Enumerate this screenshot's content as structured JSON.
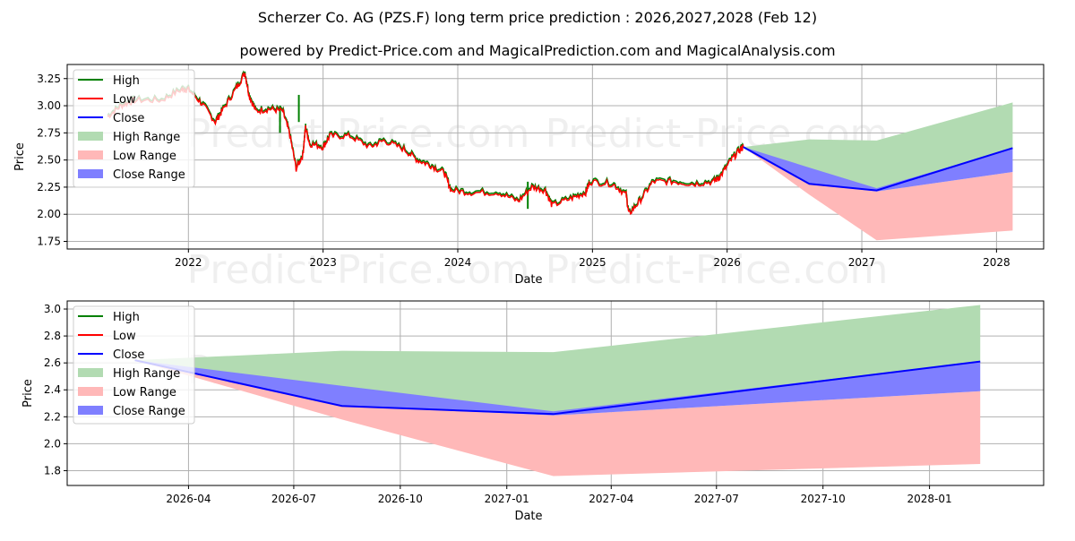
{
  "title": "Scherzer Co. AG (PZS.F) long term price prediction : 2026,2027,2028 (Feb 12)",
  "subtitle": "powered by Predict-Price.com and MagicalPrediction.com and MagicalAnalysis.com",
  "watermark": "Predict-Price.com",
  "colors": {
    "high": "#008000",
    "low": "#ff0000",
    "close": "#0000ff",
    "high_range": "#b2dbb2",
    "low_range": "#ffb8b8",
    "close_range": "#7f7fff"
  },
  "legend": [
    "High",
    "Low",
    "Close",
    "High Range",
    "Low Range",
    "Close Range"
  ],
  "chart_data": [
    {
      "type": "line",
      "name": "long-term",
      "xlabel": "Date",
      "ylabel": "Price",
      "xlim": [
        2021.1,
        2028.35
      ],
      "ylim": [
        1.68,
        3.38
      ],
      "grid": true,
      "legend_placement": "top-left",
      "x_ticks": [
        {
          "v": 2022,
          "label": "2022"
        },
        {
          "v": 2023,
          "label": "2023"
        },
        {
          "v": 2024,
          "label": "2024"
        },
        {
          "v": 2025,
          "label": "2025"
        },
        {
          "v": 2026,
          "label": "2026"
        },
        {
          "v": 2027,
          "label": "2027"
        },
        {
          "v": 2028,
          "label": "2028"
        }
      ],
      "y_ticks": [
        {
          "v": 1.75,
          "label": "1.75"
        },
        {
          "v": 2.0,
          "label": "2.00"
        },
        {
          "v": 2.25,
          "label": "2.25"
        },
        {
          "v": 2.5,
          "label": "2.50"
        },
        {
          "v": 2.75,
          "label": "2.75"
        },
        {
          "v": 3.0,
          "label": "3.00"
        },
        {
          "v": 3.25,
          "label": "3.25"
        }
      ],
      "history": {
        "x": [
          2021.4,
          2021.5,
          2021.6,
          2021.8,
          2021.95,
          2022.0,
          2022.1,
          2022.2,
          2022.25,
          2022.35,
          2022.42,
          2022.45,
          2022.5,
          2022.6,
          2022.7,
          2022.75,
          2022.8,
          2022.85,
          2022.87,
          2022.9,
          2023.0,
          2023.05,
          2023.2,
          2023.35,
          2023.45,
          2023.6,
          2023.7,
          2023.8,
          2023.9,
          2023.95,
          2024.1,
          2024.3,
          2024.45,
          2024.55,
          2024.65,
          2024.7,
          2024.85,
          2024.95,
          2024.98,
          2025.15,
          2025.25,
          2025.27,
          2025.35,
          2025.45,
          2025.6,
          2025.75,
          2025.9,
          2025.95,
          2026.03,
          2026.1,
          2026.12
        ],
        "low": [
          2.9,
          3.0,
          3.05,
          3.05,
          3.15,
          3.15,
          3.02,
          2.85,
          2.95,
          3.15,
          3.3,
          3.1,
          2.95,
          2.97,
          2.95,
          2.75,
          2.42,
          2.55,
          2.8,
          2.65,
          2.62,
          2.72,
          2.72,
          2.62,
          2.68,
          2.6,
          2.5,
          2.45,
          2.38,
          2.22,
          2.2,
          2.2,
          2.12,
          2.25,
          2.22,
          2.08,
          2.15,
          2.2,
          2.3,
          2.28,
          2.18,
          2.0,
          2.12,
          2.3,
          2.3,
          2.28,
          2.3,
          2.35,
          2.5,
          2.6,
          2.62
        ],
        "high_spikes": [
          {
            "x": 2022.82,
            "y": 3.1
          },
          {
            "x": 2022.68,
            "y": 3.0
          },
          {
            "x": 2024.52,
            "y": 2.3
          }
        ]
      },
      "forecast": {
        "x": [
          2026.12,
          2026.61,
          2027.11,
          2028.12
        ],
        "close": [
          2.62,
          2.28,
          2.22,
          2.61
        ],
        "close_upper": [
          2.62,
          2.43,
          2.24,
          2.61
        ],
        "close_lower": [
          2.62,
          2.28,
          2.21,
          2.39
        ],
        "high": [
          2.62,
          2.69,
          2.68,
          3.03
        ],
        "low": [
          2.62,
          2.18,
          1.76,
          1.85
        ]
      }
    },
    {
      "type": "line",
      "name": "forecast-zoom",
      "xlabel": "Date",
      "ylabel": "Price",
      "xlim": [
        2025.96,
        2028.27
      ],
      "ylim": [
        1.69,
        3.06
      ],
      "grid": true,
      "legend_placement": "top-left",
      "x_ticks": [
        {
          "v": 2026.247,
          "label": "2026-04"
        },
        {
          "v": 2026.496,
          "label": "2026-07"
        },
        {
          "v": 2026.748,
          "label": "2026-10"
        },
        {
          "v": 2027.0,
          "label": "2027-01"
        },
        {
          "v": 2027.247,
          "label": "2027-04"
        },
        {
          "v": 2027.496,
          "label": "2027-07"
        },
        {
          "v": 2027.748,
          "label": "2027-10"
        },
        {
          "v": 2028.0,
          "label": "2028-01"
        }
      ],
      "y_ticks": [
        {
          "v": 1.8,
          "label": "1.8"
        },
        {
          "v": 2.0,
          "label": "2.0"
        },
        {
          "v": 2.2,
          "label": "2.2"
        },
        {
          "v": 2.4,
          "label": "2.4"
        },
        {
          "v": 2.6,
          "label": "2.6"
        },
        {
          "v": 2.8,
          "label": "2.8"
        },
        {
          "v": 3.0,
          "label": "3.0"
        }
      ]
    }
  ]
}
